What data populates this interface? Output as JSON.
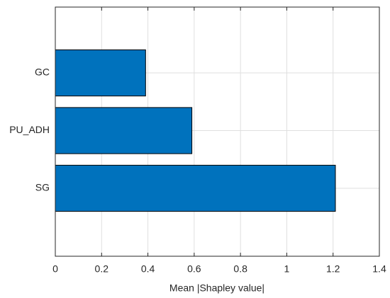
{
  "chart_data": {
    "type": "barh",
    "xlabel": "Mean |Shapley value|",
    "categories": [
      "SG",
      "PU_ADH",
      "GC"
    ],
    "values": [
      1.21,
      0.59,
      0.39
    ],
    "color": "#0072bd",
    "xlim": [
      0,
      1.4
    ],
    "xticks": [
      0,
      0.2,
      0.4,
      0.6,
      0.8,
      1,
      1.2,
      1.4
    ],
    "grid": true
  }
}
